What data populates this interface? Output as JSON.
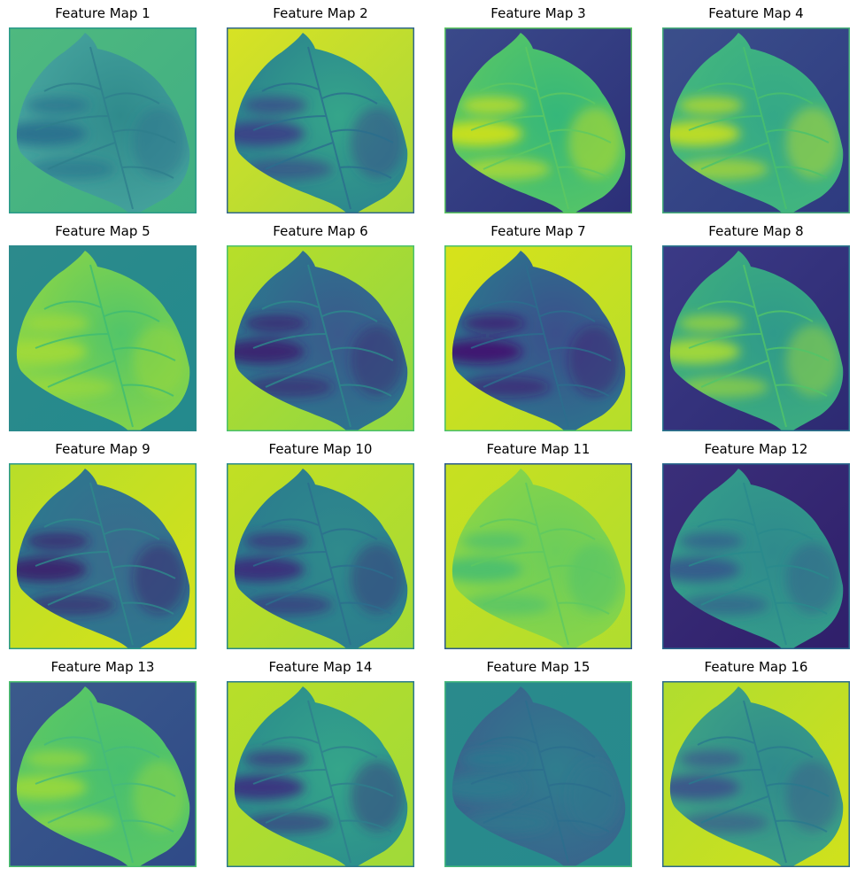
{
  "panels": [
    {
      "title": "Feature Map 1",
      "bg": "#4fb97f",
      "bgEdge": "#3fae83",
      "leaf": "#2f8a8c",
      "leafEdge": "#4aa8a0",
      "band": "#2a6f8e",
      "vein": "#2f7f8d",
      "border": "#2a9a8a"
    },
    {
      "title": "Feature Map 2",
      "bg": "#d8e224",
      "bgEdge": "#a6d83a",
      "leaf": "#35a58a",
      "leafEdge": "#2a7f8e",
      "band": "#3b3f87",
      "vein": "#2b6e8e",
      "border": "#31688e"
    },
    {
      "title": "Feature Map 3",
      "bg": "#3a4a8a",
      "bgEdge": "#2c2f78",
      "leaf": "#35b77a",
      "leafEdge": "#5cc863",
      "band": "#d2e21b",
      "vein": "#5ec962",
      "border": "#5ec962"
    },
    {
      "title": "Feature Map 4",
      "bg": "#3b4f8b",
      "bgEdge": "#2e3a80",
      "leaf": "#34a887",
      "leafEdge": "#45b97c",
      "band": "#c8e020",
      "vein": "#4ac16d",
      "border": "#46b07a"
    },
    {
      "title": "Feature Map 5",
      "bg": "#2c8a8c",
      "bgEdge": "#238a8d",
      "leaf": "#52c569",
      "leafEdge": "#90d743",
      "band": "#a2da37",
      "vein": "#3fbc73",
      "border": "#2a8a8c"
    },
    {
      "title": "Feature Map 6",
      "bg": "#b8de29",
      "bgEdge": "#8fd744",
      "leaf": "#3a5a8c",
      "leafEdge": "#2a7a8e",
      "band": "#3b1f6e",
      "vein": "#2e8a8c",
      "border": "#4ac16d"
    },
    {
      "title": "Feature Map 7",
      "bg": "#d8e21a",
      "bgEdge": "#b5de2b",
      "leaf": "#3b4f8b",
      "leafEdge": "#2a7a8e",
      "band": "#40136e",
      "vein": "#2c6e8e",
      "border": "#4ac16d"
    },
    {
      "title": "Feature Map 8",
      "bg": "#3b3a86",
      "bgEdge": "#2d2a72",
      "leaf": "#2f9a8a",
      "leafEdge": "#3fb07d",
      "band": "#a8db34",
      "vein": "#52c569",
      "border": "#2a7a8e"
    },
    {
      "title": "Feature Map 9",
      "bg": "#b8de29",
      "bgEdge": "#d5e21a",
      "leaf": "#3a6b8d",
      "leafEdge": "#2a7a8e",
      "band": "#3a1c6c",
      "vein": "#2f8a8c",
      "border": "#2a9a8a"
    },
    {
      "title": "Feature Map 10",
      "bg": "#c2df23",
      "bgEdge": "#a5db36",
      "leaf": "#2f8a8c",
      "leafEdge": "#2a7a8e",
      "band": "#3b2a7a",
      "vein": "#2c6e8e",
      "border": "#2a8a8c"
    },
    {
      "title": "Feature Map 11",
      "bg": "#c8e020",
      "bgEdge": "#b0dd2f",
      "leaf": "#6ccd5a",
      "leafEdge": "#8fd744",
      "band": "#48bf70",
      "vein": "#5ec962",
      "border": "#2a5a8c"
    },
    {
      "title": "Feature Map 12",
      "bg": "#3a2f7a",
      "bgEdge": "#2f1f6a",
      "leaf": "#2f8a8c",
      "leafEdge": "#35a08a",
      "band": "#33578c",
      "vein": "#2a8a8c",
      "border": "#2a6a8e"
    },
    {
      "title": "Feature Map 13",
      "bg": "#3b5a8b",
      "bgEdge": "#2f4a88",
      "leaf": "#48bf70",
      "leafEdge": "#5ec962",
      "band": "#9ad93c",
      "vein": "#45b97c",
      "border": "#4ac16d"
    },
    {
      "title": "Feature Map 14",
      "bg": "#b8de29",
      "bgEdge": "#a0da39",
      "leaf": "#35a58a",
      "leafEdge": "#2a8a8c",
      "band": "#3b2f7f",
      "vein": "#2f7f8d",
      "border": "#2a7a8e"
    },
    {
      "title": "Feature Map 15",
      "bg": "#2a8a8c",
      "bgEdge": "#268a8d",
      "leaf": "#2f7d8e",
      "leafEdge": "#3b5f8c",
      "band": "#2b7a8e",
      "vein": "#2c6f8e",
      "border": "#45b97c"
    },
    {
      "title": "Feature Map 16",
      "bg": "#b0dd2f",
      "bgEdge": "#d0e11c",
      "leaf": "#2f8a8c",
      "leafEdge": "#3fa684",
      "band": "#3b528b",
      "vein": "#2a7a8e",
      "border": "#2a6a8e"
    }
  ]
}
